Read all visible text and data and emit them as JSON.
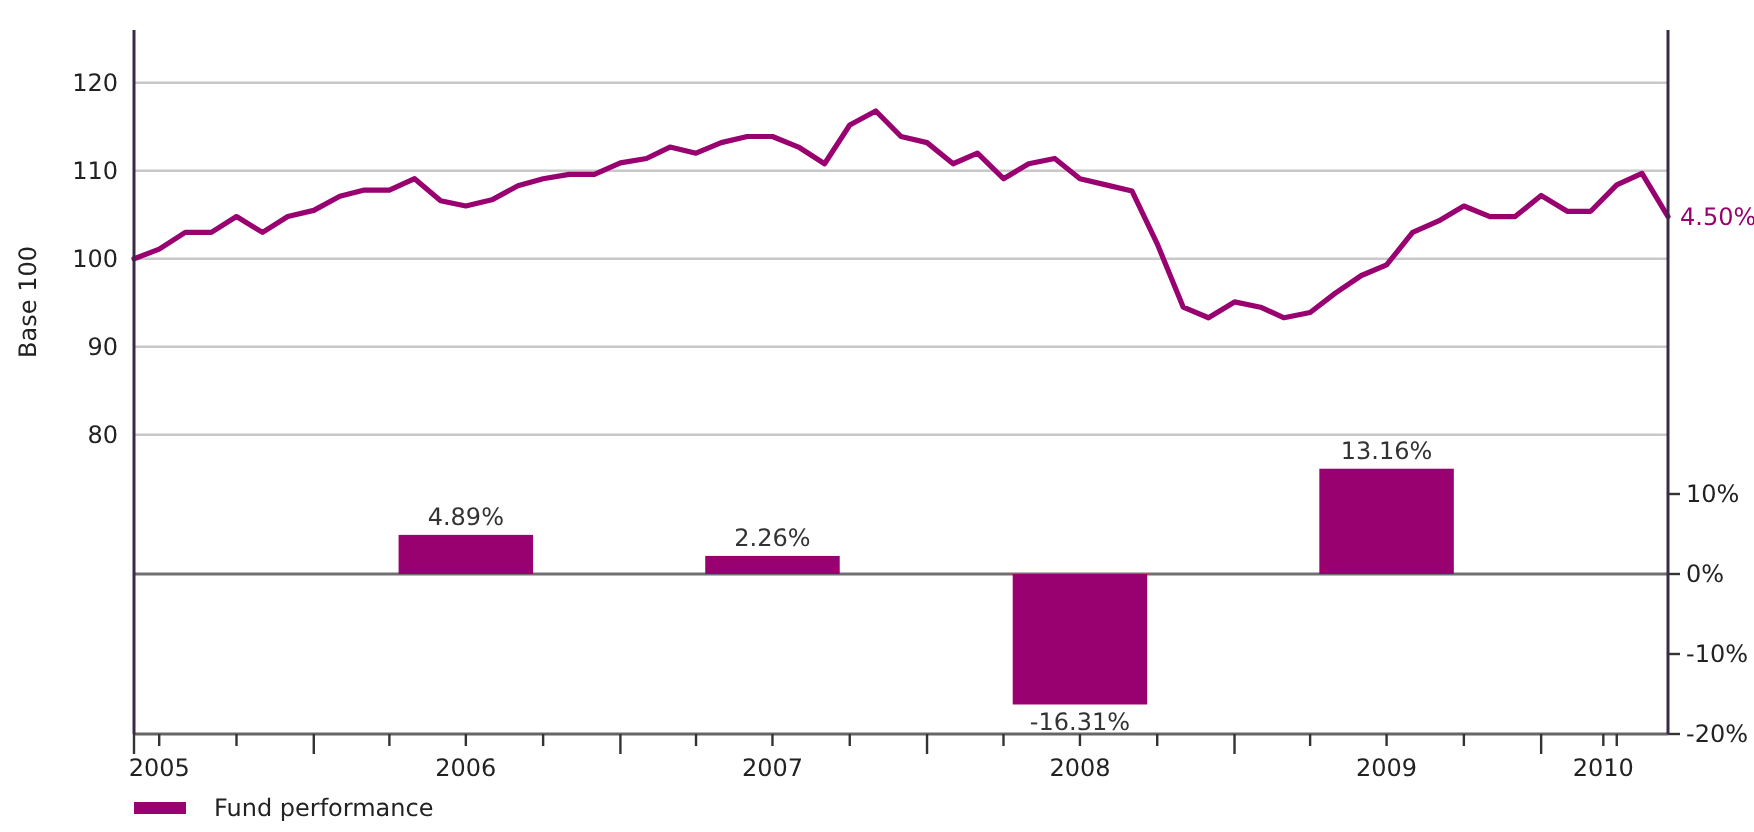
{
  "chart_data": {
    "type": "line",
    "ylabel": "Base 100",
    "xlim": [
      "2005-06",
      "2010-06"
    ],
    "xticks": [
      {
        "value": "2005-07",
        "label": "2005"
      },
      {
        "value": "2005-10",
        "label": null
      },
      {
        "value": "2006-01",
        "label": null
      },
      {
        "value": "2006-04",
        "label": null
      },
      {
        "value": "2006-07",
        "label": "2006"
      },
      {
        "value": "2006-10",
        "label": null
      },
      {
        "value": "2007-01",
        "label": null
      },
      {
        "value": "2007-04",
        "label": null
      },
      {
        "value": "2007-07",
        "label": "2007"
      },
      {
        "value": "2007-10",
        "label": null
      },
      {
        "value": "2008-01",
        "label": null
      },
      {
        "value": "2008-04",
        "label": null
      },
      {
        "value": "2008-07",
        "label": "2008"
      },
      {
        "value": "2008-10",
        "label": null
      },
      {
        "value": "2009-01",
        "label": null
      },
      {
        "value": "2009-04",
        "label": null
      },
      {
        "value": "2009-07",
        "label": "2009"
      },
      {
        "value": "2009-10",
        "label": null
      },
      {
        "value": "2010-01",
        "label": null
      },
      {
        "value": "2010-03-16",
        "label": "2010"
      },
      {
        "value": "2010-04",
        "label": null
      }
    ],
    "ylim": [
      46,
      126
    ],
    "yticks": [
      80,
      90,
      100,
      110,
      120
    ],
    "y2lim": [
      -20,
      68
    ],
    "y2ticks": [
      {
        "value": 10,
        "label": "10%"
      },
      {
        "value": 0,
        "label": "0%"
      },
      {
        "value": -10,
        "label": "-10%"
      },
      {
        "value": -20,
        "label": "-20%"
      }
    ],
    "grid": "y",
    "legend": "bottom left",
    "ref_lines": [
      {
        "axis": "y2",
        "value": 0,
        "color": "#707070"
      }
    ],
    "annotations": [
      {
        "text": "4.50%",
        "x": "2010-06",
        "y": 104.8
      }
    ],
    "series": [
      {
        "name": "Fund performance",
        "color": "#990070",
        "x": [
          "2005-06",
          "2005-07",
          "2005-08",
          "2005-09",
          "2005-10",
          "2005-11",
          "2005-12",
          "2006-01",
          "2006-02",
          "2006-03",
          "2006-04",
          "2006-05",
          "2006-06",
          "2006-07",
          "2006-08",
          "2006-09",
          "2006-10",
          "2006-11",
          "2006-12",
          "2007-01",
          "2007-02",
          "2007-03",
          "2007-04",
          "2007-05",
          "2007-06",
          "2007-07",
          "2007-08",
          "2007-09",
          "2007-10",
          "2007-11",
          "2007-12",
          "2008-01",
          "2008-02",
          "2008-03",
          "2008-04",
          "2008-05",
          "2008-06",
          "2008-07",
          "2008-08",
          "2008-09",
          "2008-10",
          "2008-11",
          "2008-12",
          "2009-01",
          "2009-02",
          "2009-03",
          "2009-04",
          "2009-05",
          "2009-06",
          "2009-07",
          "2009-08",
          "2009-09",
          "2009-10",
          "2009-11",
          "2009-12",
          "2010-01",
          "2010-02",
          "2010-03",
          "2010-04",
          "2010-05",
          "2010-06"
        ],
        "values": [
          100,
          101.1,
          103,
          103,
          104.8,
          103,
          104.8,
          105.5,
          107.1,
          107.8,
          107.8,
          109.1,
          106.6,
          106,
          106.7,
          108.3,
          109.1,
          109.6,
          109.6,
          110.9,
          111.4,
          112.7,
          112,
          113.2,
          113.9,
          113.9,
          112.7,
          110.8,
          115.2,
          116.8,
          113.9,
          113.2,
          110.8,
          112,
          109.1,
          110.8,
          111.4,
          109.1,
          108.4,
          107.7,
          101.7,
          94.5,
          93.3,
          95.1,
          94.5,
          93.3,
          93.9,
          96.1,
          98.1,
          99.3,
          103,
          104.3,
          106,
          104.8,
          104.8,
          107.2,
          105.4,
          105.4,
          108.4,
          109.7,
          104.8
        ]
      },
      {
        "type": "bar",
        "axis": "y2",
        "color": "#990070",
        "x": [
          "2006-07",
          "2007-07",
          "2008-07",
          "2009-07"
        ],
        "values": [
          4.89,
          2.26,
          -16.31,
          13.16
        ],
        "value_labels": [
          "4.89%",
          "2.26%",
          "-16.31%",
          "13.16%"
        ]
      }
    ]
  }
}
